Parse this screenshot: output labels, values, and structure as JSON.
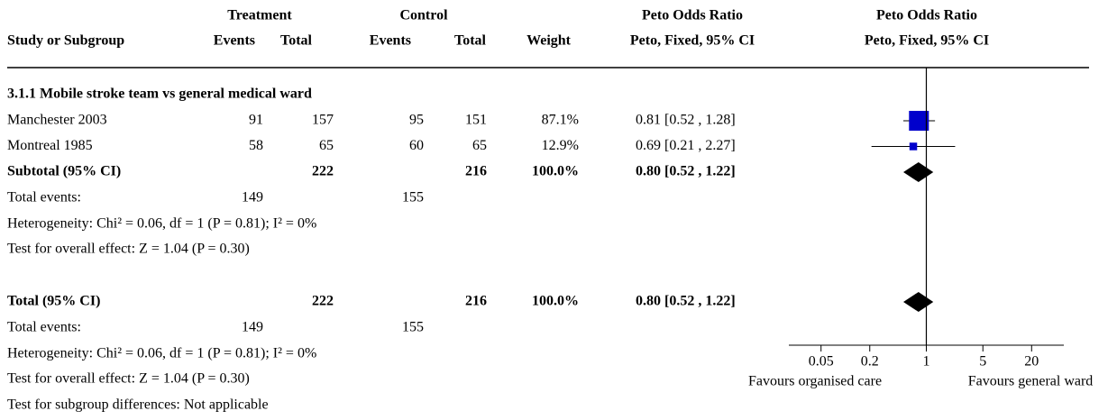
{
  "chart_data": {
    "type": "forest",
    "headers": {
      "treatment": "Treatment",
      "control": "Control",
      "or_group": "Peto Odds Ratio",
      "plot_group": "Peto Odds Ratio",
      "study": "Study or Subgroup",
      "t_events": "Events",
      "t_total": "Total",
      "c_events": "Events",
      "c_total": "Total",
      "weight": "Weight",
      "or_method": "Peto, Fixed, 95% CI",
      "plot_method": "Peto, Fixed, 95% CI"
    },
    "subgroup": "3.1.1 Mobile stroke team vs general medical ward",
    "studies": [
      {
        "name": "Manchester 2003",
        "t_events": 91,
        "t_total": 157,
        "c_events": 95,
        "c_total": 151,
        "weight": 87.1,
        "weight_label": "87.1%",
        "or": 0.81,
        "ci": [
          0.52,
          1.28
        ],
        "or_label": "0.81 [0.52 , 1.28]"
      },
      {
        "name": "Montreal 1985",
        "t_events": 58,
        "t_total": 65,
        "c_events": 60,
        "c_total": 65,
        "weight": 12.9,
        "weight_label": "12.9%",
        "or": 0.69,
        "ci": [
          0.21,
          2.27
        ],
        "or_label": "0.69 [0.21 , 2.27]"
      }
    ],
    "subtotal": {
      "name": "Subtotal (95% CI)",
      "t_total": 222,
      "c_total": 216,
      "weight": 100.0,
      "weight_label": "100.0%",
      "or": 0.8,
      "ci": [
        0.52,
        1.22
      ],
      "or_label": "0.80 [0.52 , 1.22]"
    },
    "subtotal_events": {
      "label": "Total events:",
      "t": 149,
      "c": 155
    },
    "subtotal_heterogeneity": "Heterogeneity: Chi² = 0.06, df = 1 (P = 0.81); I² = 0%",
    "subtotal_effect": "Test for overall effect: Z = 1.04 (P = 0.30)",
    "total": {
      "name": "Total (95% CI)",
      "t_total": 222,
      "c_total": 216,
      "weight": 100.0,
      "weight_label": "100.0%",
      "or": 0.8,
      "ci": [
        0.52,
        1.22
      ],
      "or_label": "0.80 [0.52 , 1.22]"
    },
    "total_events": {
      "label": "Total events:",
      "t": 149,
      "c": 155
    },
    "total_heterogeneity": "Heterogeneity: Chi² = 0.06, df = 1 (P = 0.81); I² = 0%",
    "total_effect": "Test for overall effect: Z = 1.04 (P = 0.30)",
    "subgroup_differences": "Test for subgroup differences: Not applicable",
    "xlim": [
      0.02,
      50
    ],
    "xticks": [
      0.05,
      0.2,
      1,
      5,
      20
    ],
    "log": true,
    "xlabel_left": "Favours organised care",
    "xlabel_right": "Favours general ward",
    "color": "#0000cc"
  }
}
